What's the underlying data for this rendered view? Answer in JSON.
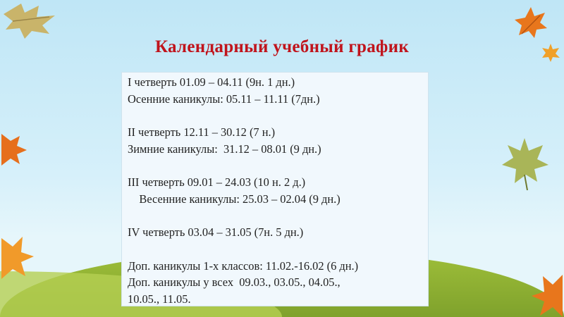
{
  "title": "Календарный учебный график",
  "lines": [
    "I четверть 01.09 – 04.11 (9н. 1 дн.)",
    "Осенние каникулы: 05.11 – 11.11 (7дн.)",
    "",
    "II четверть 12.11 – 30.12 (7 н.)",
    "Зимние каникулы:  31.12 – 08.01 (9 дн.)",
    "",
    "III четверть 09.01 – 24.03 (10 н. 2 д.)",
    "    Весенние каникулы: 25.03 – 02.04 (9 дн.)",
    "",
    "IV четверть 03.04 – 31.05 (7н. 5 дн.)",
    "",
    "Доп. каникулы 1-х классов: 11.02.-16.02 (6 дн.)",
    "Доп. каникулы у всех  09.03., 03.05., 04.05.,",
    "10.05., 11.05."
  ],
  "colors": {
    "title": "#c0141c",
    "sky": "#cbeaf8",
    "grass": "#8fb133",
    "box": "#f1f8fd"
  }
}
